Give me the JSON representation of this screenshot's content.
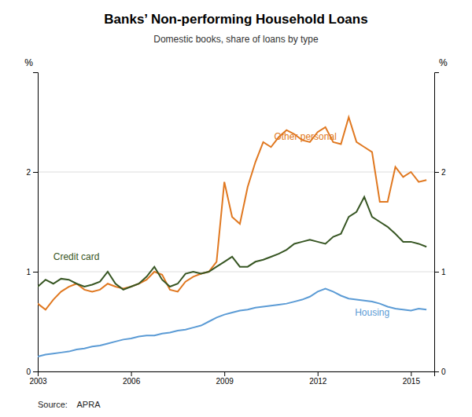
{
  "chart_data": {
    "type": "line",
    "title": "Banks’ Non-performing Household Loans",
    "subtitle": "Domestic books, share of loans by type",
    "y_label": "%",
    "y2_label": "%",
    "source": "Source:    APRA",
    "grid": true,
    "xlim": [
      2003.0,
      2015.75
    ],
    "xticks": [
      2003,
      2006,
      2009,
      2012,
      2015
    ],
    "ylim": [
      0,
      3.0
    ],
    "yticks": [
      0,
      1,
      2
    ],
    "y2lim": [
      0,
      3.0
    ],
    "y2ticks": [
      0,
      1,
      2
    ],
    "x": [
      2003.0,
      2003.25,
      2003.5,
      2003.75,
      2004.0,
      2004.25,
      2004.5,
      2004.75,
      2005.0,
      2005.25,
      2005.5,
      2005.75,
      2006.0,
      2006.25,
      2006.5,
      2006.75,
      2007.0,
      2007.25,
      2007.5,
      2007.75,
      2008.0,
      2008.25,
      2008.5,
      2008.75,
      2009.0,
      2009.25,
      2009.5,
      2009.75,
      2010.0,
      2010.25,
      2010.5,
      2010.75,
      2011.0,
      2011.25,
      2011.5,
      2011.75,
      2012.0,
      2012.25,
      2012.5,
      2012.75,
      2013.0,
      2013.25,
      2013.5,
      2013.75,
      2014.0,
      2014.25,
      2014.5,
      2014.75,
      2015.0,
      2015.25,
      2015.5
    ],
    "series": [
      {
        "color": "#e07820",
        "values": [
          0.68,
          0.62,
          0.72,
          0.8,
          0.85,
          0.88,
          0.82,
          0.8,
          0.82,
          0.88,
          0.85,
          0.83,
          0.85,
          0.88,
          0.92,
          1.0,
          0.97,
          0.82,
          0.8,
          0.9,
          0.95,
          0.98,
          1.0,
          1.1,
          1.9,
          1.55,
          1.48,
          1.85,
          2.1,
          2.3,
          2.25,
          2.35,
          2.42,
          2.38,
          2.32,
          2.3,
          2.4,
          2.45,
          2.3,
          2.28,
          2.55,
          2.3,
          2.25,
          2.2,
          1.7,
          1.7,
          2.05,
          1.95,
          2.0,
          1.9,
          1.92
        ]
      },
      {
        "color": "#375623",
        "values": [
          0.85,
          0.92,
          0.88,
          0.93,
          0.92,
          0.88,
          0.85,
          0.87,
          0.9,
          1.0,
          0.88,
          0.82,
          0.85,
          0.88,
          0.95,
          1.05,
          0.92,
          0.85,
          0.88,
          0.98,
          1.0,
          0.98,
          1.0,
          1.05,
          1.1,
          1.15,
          1.05,
          1.05,
          1.1,
          1.12,
          1.15,
          1.18,
          1.22,
          1.28,
          1.3,
          1.32,
          1.3,
          1.28,
          1.35,
          1.38,
          1.55,
          1.6,
          1.75,
          1.55,
          1.5,
          1.45,
          1.38,
          1.3,
          1.3,
          1.28,
          1.25
        ]
      },
      {
        "color": "#5b9bd5",
        "values": [
          0.15,
          0.17,
          0.18,
          0.19,
          0.2,
          0.22,
          0.23,
          0.25,
          0.26,
          0.28,
          0.3,
          0.32,
          0.33,
          0.35,
          0.36,
          0.36,
          0.38,
          0.39,
          0.41,
          0.42,
          0.44,
          0.46,
          0.5,
          0.54,
          0.57,
          0.59,
          0.61,
          0.62,
          0.64,
          0.65,
          0.66,
          0.67,
          0.68,
          0.7,
          0.72,
          0.75,
          0.8,
          0.83,
          0.8,
          0.76,
          0.73,
          0.72,
          0.71,
          0.7,
          0.68,
          0.65,
          0.63,
          0.62,
          0.61,
          0.63,
          0.62
        ]
      }
    ],
    "annotations": [
      {
        "text": "Other personal",
        "x": 2010.6,
        "y": 2.32,
        "color": "#e07820"
      },
      {
        "text": "Credit card",
        "x": 2003.5,
        "y": 1.12,
        "color": "#375623"
      },
      {
        "text": "Housing",
        "x": 2013.2,
        "y": 0.56,
        "color": "#5b9bd5"
      }
    ]
  }
}
